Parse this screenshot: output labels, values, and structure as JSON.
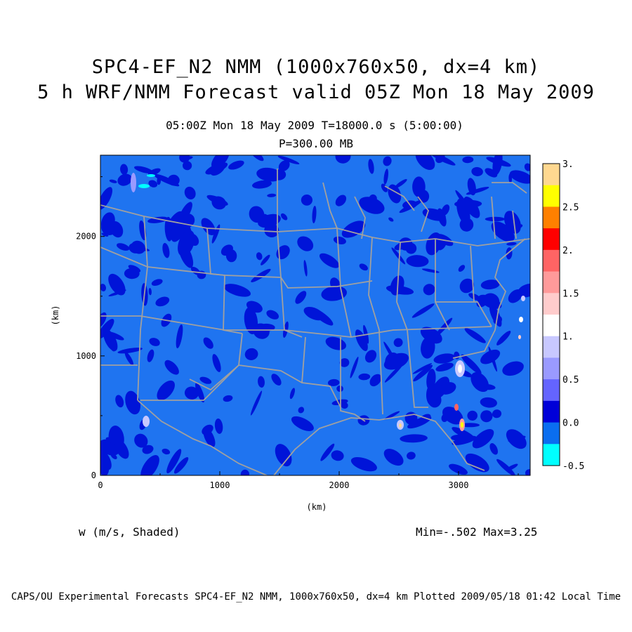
{
  "title_line1": "SPC4-EF_N2 NMM (1000x760x50, dx=4 km)",
  "title_line2": "5 h WRF/NMM Forecast valid 05Z Mon 18 May 2009",
  "time_line": "05:00Z Mon 18 May 2009    T=18000.0 s (5:00:00)",
  "level_line": "P=300.00 MB",
  "variable_label": "w (m/s, Shaded)",
  "min_max": "Min=-.502 Max=3.25",
  "footer": "CAPS/OU Experimental Forecasts  SPC4-EF_N2 NMM, 1000x760x50, dx=4 km  Plotted 2009/05/18 01:42 Local Time",
  "axes": {
    "x_label": "(km)",
    "y_label": "(km)",
    "x_ticks": [
      "0",
      "1000",
      "2000",
      "3000"
    ],
    "y_ticks": [
      "0",
      "1000",
      "2000"
    ],
    "x_range": [
      0,
      3600
    ],
    "y_range": [
      0,
      2680
    ]
  },
  "colorbar": {
    "labels": [
      "3.",
      "2.5",
      "2.",
      "1.5",
      "1.",
      "0.5",
      "0.0",
      "-0.5"
    ],
    "colors": [
      "#ffd890",
      "#ffff00",
      "#ff8000",
      "#ff0000",
      "#ff6464",
      "#ff9a9a",
      "#ffcccc",
      "#ffffff",
      "#c8c8ff",
      "#9a9aff",
      "#6464ff",
      "#0000d8",
      "#0a6ef0",
      "#00ffff"
    ]
  },
  "palette": {
    "background_field": "#1f74f0",
    "dark_patches": "#0014d8",
    "boundaries": "#a0a0a0"
  }
}
